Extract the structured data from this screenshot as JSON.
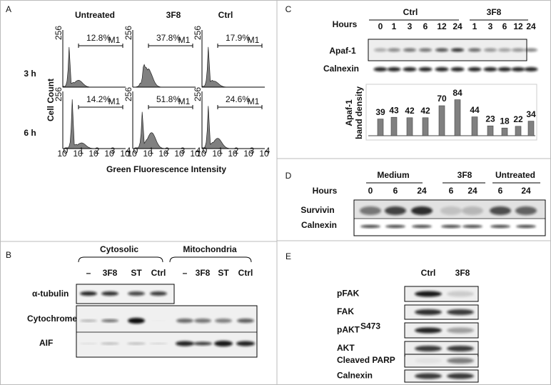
{
  "panel_a": {
    "label": "A",
    "columns": [
      "Untreated",
      "3F8",
      "Ctrl"
    ],
    "rows": [
      "3 h",
      "6 h"
    ],
    "percentages": [
      [
        "12.8%",
        "37.8%",
        "17.9%"
      ],
      [
        "14.2%",
        "51.8%",
        "24.6%"
      ]
    ],
    "gate": "M1",
    "y_label": "Cell Count",
    "y_max": "256",
    "x_tick_base": "10",
    "x_tick_exponents": [
      "0",
      "1",
      "2",
      "3",
      "4"
    ],
    "x_label": "Green Fluorescence Intensity"
  },
  "panel_b": {
    "label": "B",
    "groups": [
      "Cytosolic",
      "Mitochondria"
    ],
    "lanes": [
      "–",
      "3F8",
      "ST",
      "Ctrl",
      "–",
      "3F8",
      "ST",
      "Ctrl"
    ],
    "blots": [
      "α-tubulin",
      "Cytochrome c",
      "AIF"
    ]
  },
  "panel_c": {
    "label": "C",
    "groups": [
      "Ctrl",
      "3F8"
    ],
    "hours_label": "Hours",
    "hours": [
      "0",
      "1",
      "3",
      "6",
      "12",
      "24",
      "1",
      "3",
      "6",
      "12",
      "24"
    ],
    "blots": [
      "Apaf-1",
      "Calnexin"
    ]
  },
  "chart_data": {
    "type": "bar",
    "y_label_lines": [
      "Apaf-1",
      "band density"
    ],
    "values": [
      39,
      43,
      42,
      42,
      70,
      84,
      44,
      23,
      18,
      22,
      34
    ],
    "color": "#808080"
  },
  "panel_d": {
    "label": "D",
    "groups": [
      "Medium",
      "3F8",
      "Untreated"
    ],
    "hours_label": "Hours",
    "hours": [
      "0",
      "6",
      "24",
      "6",
      "24",
      "6",
      "24"
    ],
    "blots": [
      "Survivin",
      "Calnexin"
    ]
  },
  "panel_e": {
    "label": "E",
    "lanes": [
      "Ctrl",
      "3F8"
    ],
    "blots": [
      {
        "name": "pFAK"
      },
      {
        "name": "FAK"
      },
      {
        "name": "pAKT",
        "sup": "S473"
      },
      {
        "name": "AKT"
      },
      {
        "name": "Cleaved PARP"
      },
      {
        "name": "Calnexin"
      }
    ]
  }
}
